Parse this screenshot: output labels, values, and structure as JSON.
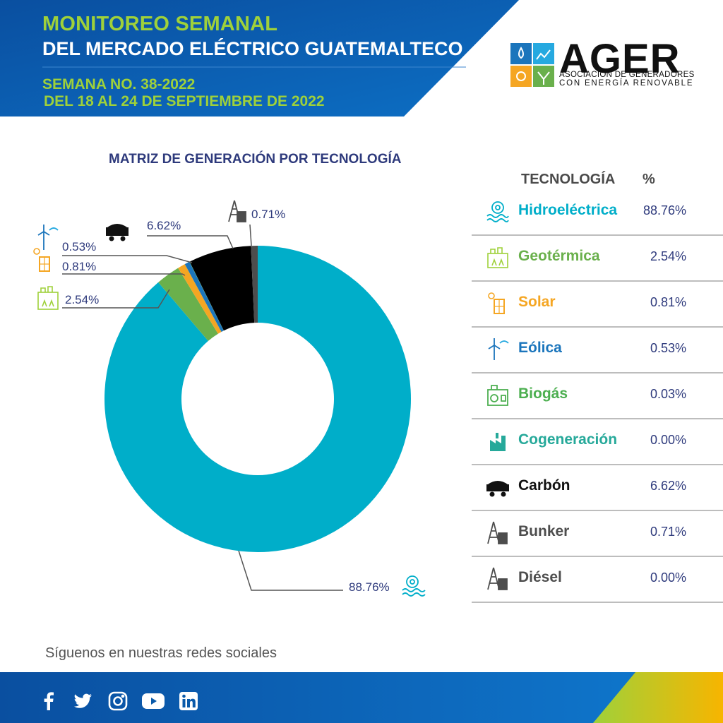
{
  "header": {
    "title_line1": "MONITOREO SEMANAL",
    "title_line2": "DEL MERCADO ELÉCTRICO GUATEMALTECO",
    "week": "SEMANA NO. 38-2022",
    "range": "DEL 18 AL 24 DE SEPTIEMBRE DE 2022"
  },
  "logo": {
    "word": "AGER",
    "line1": "ASOCIACIÓN DE GENERADORES",
    "line2": "CON ENERGÍA RENOVABLE"
  },
  "chart_data": {
    "type": "pie",
    "title": "MATRIZ DE GENERACIÓN POR TECNOLOGÍA",
    "categories": [
      "Hidroeléctrica",
      "Geotérmica",
      "Solar",
      "Eólica",
      "Biogás",
      "Cogeneración",
      "Carbón",
      "Bunker",
      "Diésel"
    ],
    "values": [
      88.76,
      2.54,
      0.81,
      0.53,
      0.03,
      0.0,
      6.62,
      0.71,
      0.0
    ],
    "labels": [
      "88.76%",
      "2.54%",
      "0.81%",
      "0.53%",
      "",
      "",
      "6.62%",
      "0.71%",
      ""
    ],
    "colors": [
      "#00aec9",
      "#6ab04c",
      "#f5a623",
      "#1b75bc",
      "#4caf50",
      "#26a99a",
      "#000000",
      "#4d4d4d",
      "#4d4d4d"
    ],
    "donut": true
  },
  "table": {
    "header_tech": "TECNOLOGÍA",
    "header_pct": "%",
    "rows": [
      {
        "name": "Hidroeléctrica",
        "value": "88.76%",
        "color": "#00aec9",
        "icon": "hydro-icon"
      },
      {
        "name": "Geotérmica",
        "value": "2.54%",
        "color": "#6ab04c",
        "icon": "geothermal-icon"
      },
      {
        "name": "Solar",
        "value": "0.81%",
        "color": "#f5a623",
        "icon": "solar-panel-icon"
      },
      {
        "name": "Eólica",
        "value": "0.53%",
        "color": "#1b75bc",
        "icon": "wind-turbine-icon"
      },
      {
        "name": "Biogás",
        "value": "0.03%",
        "color": "#4caf50",
        "icon": "biogas-icon"
      },
      {
        "name": "Cogeneración",
        "value": "0.00%",
        "color": "#26a99a",
        "icon": "factory-icon"
      },
      {
        "name": "Carbón",
        "value": "6.62%",
        "color": "#111111",
        "icon": "coal-cart-icon"
      },
      {
        "name": "Bunker",
        "value": "0.71%",
        "color": "#4d4d4d",
        "icon": "oil-derrick-icon"
      },
      {
        "name": "Diésel",
        "value": "0.00%",
        "color": "#4d4d4d",
        "icon": "diesel-derrick-icon"
      }
    ]
  },
  "footer": {
    "social_text": "Síguenos en nuestras redes sociales",
    "social_icons": [
      "facebook-icon",
      "twitter-icon",
      "instagram-icon",
      "youtube-icon",
      "linkedin-icon"
    ]
  }
}
